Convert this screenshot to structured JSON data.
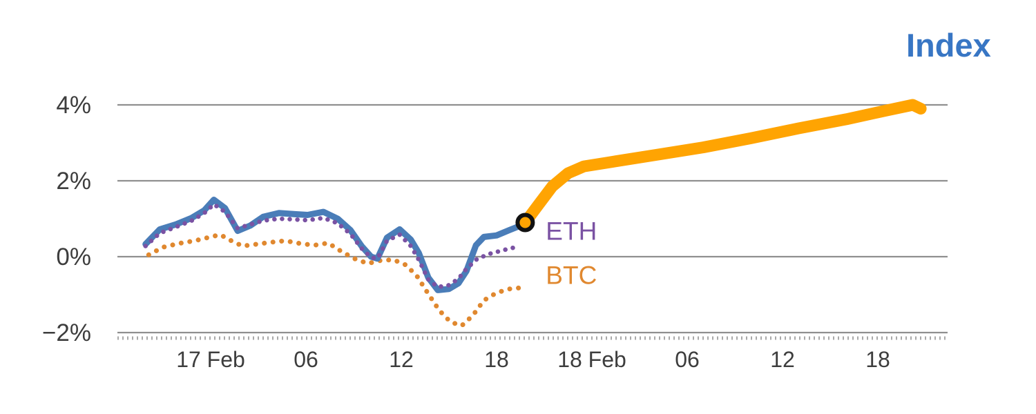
{
  "chart_data": {
    "type": "line",
    "title": "Index",
    "x_unit": "hours from 17 Feb 00:00",
    "xlim": [
      -6,
      46.5
    ],
    "ylim": [
      -2.55,
      4.55
    ],
    "grid": "horizontal",
    "legend_position": "inline-labels",
    "xticks": [
      {
        "t": 0,
        "label": "17 Feb"
      },
      {
        "t": 6,
        "label": "06"
      },
      {
        "t": 12,
        "label": "12"
      },
      {
        "t": 18,
        "label": "18"
      },
      {
        "t": 24,
        "label": "18 Feb"
      },
      {
        "t": 30,
        "label": "06"
      },
      {
        "t": 36,
        "label": "12"
      },
      {
        "t": 42,
        "label": "18"
      }
    ],
    "yticks": [
      {
        "v": 4,
        "label": "4%"
      },
      {
        "v": 2,
        "label": "2%"
      },
      {
        "v": 0,
        "label": "0%"
      },
      {
        "v": -2,
        "label": "−2%"
      }
    ],
    "series": [
      {
        "id": "btc",
        "name": "BTC",
        "color_key": "btc",
        "style": "dotted",
        "width": 7,
        "dash": "0.1 12.5",
        "points": [
          [
            -3.9,
            0.05
          ],
          [
            -3.0,
            0.25
          ],
          [
            -2.0,
            0.35
          ],
          [
            -1.0,
            0.42
          ],
          [
            0.0,
            0.52
          ],
          [
            0.6,
            0.58
          ],
          [
            1.3,
            0.42
          ],
          [
            2.0,
            0.28
          ],
          [
            2.9,
            0.33
          ],
          [
            3.8,
            0.38
          ],
          [
            4.7,
            0.42
          ],
          [
            5.6,
            0.35
          ],
          [
            6.5,
            0.3
          ],
          [
            7.4,
            0.36
          ],
          [
            8.3,
            0.12
          ],
          [
            9.1,
            -0.06
          ],
          [
            9.9,
            -0.18
          ],
          [
            10.7,
            -0.1
          ],
          [
            11.5,
            -0.08
          ],
          [
            12.3,
            -0.22
          ],
          [
            13.0,
            -0.52
          ],
          [
            13.7,
            -0.98
          ],
          [
            14.4,
            -1.42
          ],
          [
            15.1,
            -1.72
          ],
          [
            15.8,
            -1.82
          ],
          [
            16.5,
            -1.55
          ],
          [
            17.2,
            -1.15
          ],
          [
            18.0,
            -0.95
          ],
          [
            18.8,
            -0.85
          ],
          [
            19.5,
            -0.82
          ]
        ]
      },
      {
        "id": "index-history",
        "name": "Index (history)",
        "color_key": "index",
        "style": "solid",
        "width": 9,
        "dash": "",
        "points": [
          [
            -4.1,
            0.33
          ],
          [
            -3.2,
            0.72
          ],
          [
            -2.2,
            0.85
          ],
          [
            -1.2,
            1.02
          ],
          [
            -0.4,
            1.22
          ],
          [
            0.2,
            1.5
          ],
          [
            0.9,
            1.28
          ],
          [
            1.7,
            0.68
          ],
          [
            2.5,
            0.82
          ],
          [
            3.3,
            1.05
          ],
          [
            4.3,
            1.15
          ],
          [
            5.3,
            1.12
          ],
          [
            6.1,
            1.1
          ],
          [
            7.1,
            1.18
          ],
          [
            8.0,
            1.0
          ],
          [
            8.8,
            0.7
          ],
          [
            9.5,
            0.28
          ],
          [
            10.1,
            0.0
          ],
          [
            10.5,
            -0.05
          ],
          [
            11.1,
            0.5
          ],
          [
            11.9,
            0.72
          ],
          [
            12.6,
            0.45
          ],
          [
            13.1,
            0.1
          ],
          [
            13.7,
            -0.55
          ],
          [
            14.3,
            -0.88
          ],
          [
            15.0,
            -0.85
          ],
          [
            15.6,
            -0.7
          ],
          [
            16.1,
            -0.38
          ],
          [
            16.7,
            0.3
          ],
          [
            17.2,
            0.52
          ],
          [
            18.0,
            0.56
          ],
          [
            18.8,
            0.7
          ],
          [
            19.4,
            0.8
          ],
          [
            19.8,
            0.9
          ]
        ]
      },
      {
        "id": "eth",
        "name": "ETH",
        "color_key": "eth",
        "style": "dotted",
        "width": 6.5,
        "dash": "0.1 11",
        "points": [
          [
            -4.1,
            0.28
          ],
          [
            -3.2,
            0.62
          ],
          [
            -2.2,
            0.78
          ],
          [
            -1.2,
            0.95
          ],
          [
            -0.4,
            1.15
          ],
          [
            0.2,
            1.38
          ],
          [
            0.9,
            1.18
          ],
          [
            1.7,
            0.75
          ],
          [
            2.5,
            0.85
          ],
          [
            3.3,
            0.95
          ],
          [
            4.3,
            1.0
          ],
          [
            5.3,
            0.98
          ],
          [
            6.1,
            0.96
          ],
          [
            7.1,
            1.02
          ],
          [
            8.0,
            0.88
          ],
          [
            8.8,
            0.6
          ],
          [
            9.5,
            0.22
          ],
          [
            10.1,
            -0.02
          ],
          [
            10.5,
            -0.05
          ],
          [
            11.1,
            0.42
          ],
          [
            11.9,
            0.58
          ],
          [
            12.6,
            0.28
          ],
          [
            13.1,
            -0.08
          ],
          [
            13.7,
            -0.6
          ],
          [
            14.3,
            -0.8
          ],
          [
            15.0,
            -0.75
          ],
          [
            15.6,
            -0.58
          ],
          [
            16.1,
            -0.32
          ],
          [
            16.8,
            -0.05
          ],
          [
            17.6,
            0.08
          ],
          [
            18.5,
            0.18
          ],
          [
            19.4,
            0.27
          ]
        ]
      },
      {
        "id": "index-forecast",
        "name": "Index (forecast)",
        "color_key": "forecast",
        "style": "solid",
        "width": 17,
        "dash": "",
        "points": [
          [
            19.8,
            0.9
          ],
          [
            20.6,
            1.35
          ],
          [
            21.5,
            1.85
          ],
          [
            22.5,
            2.2
          ],
          [
            23.5,
            2.38
          ],
          [
            25.0,
            2.48
          ],
          [
            28.0,
            2.68
          ],
          [
            31.0,
            2.88
          ],
          [
            34.0,
            3.12
          ],
          [
            37.0,
            3.38
          ],
          [
            40.0,
            3.62
          ],
          [
            42.5,
            3.85
          ],
          [
            44.2,
            4.0
          ],
          [
            44.7,
            3.9
          ]
        ]
      }
    ],
    "marker": {
      "t": 19.8,
      "v": 0.9,
      "value_label": ""
    },
    "annotations": [
      {
        "text": "ETH",
        "t": 21.1,
        "v": 0.45,
        "color_key": "eth"
      },
      {
        "text": "BTC",
        "t": 21.1,
        "v": -0.72,
        "color_key": "btc"
      }
    ]
  },
  "colors": {
    "index": "#4a7db8",
    "eth": "#7a52a3",
    "btc": "#e0882f",
    "forecast": "#ffa402",
    "title": "#3876c4",
    "grid": "#8f8f8f",
    "axis_hatch": "#a8a8a8",
    "axis_text": "#3d3d3d",
    "marker_ring": "#111111"
  }
}
